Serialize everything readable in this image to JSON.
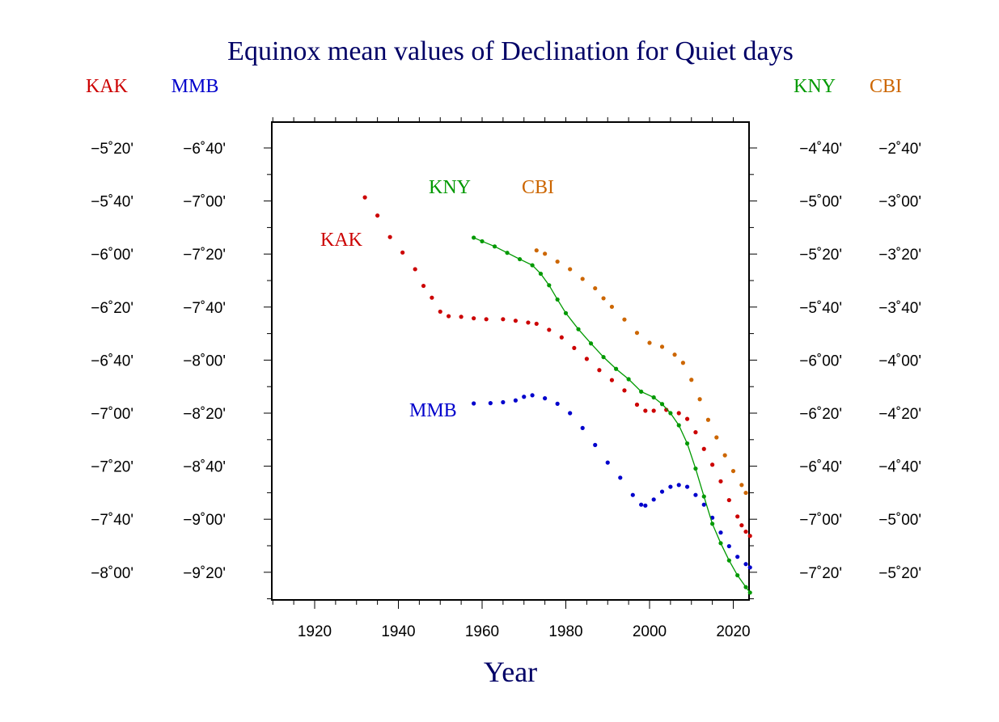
{
  "chart_data": {
    "type": "line",
    "title": "Equinox mean values of Declination for Quiet days",
    "xlabel": "Year",
    "xlim": [
      1910,
      2025
    ],
    "x_ticks": [
      1920,
      1940,
      1960,
      1980,
      2000,
      2020
    ],
    "grid": false,
    "axes": [
      {
        "name": "KAK",
        "side": "left",
        "color": "#cc0000",
        "tick_labels": [
          "−5˚20'",
          "−5˚40'",
          "−6˚00'",
          "−6˚20'",
          "−6˚40'",
          "−7˚00'",
          "−7˚20'",
          "−7˚40'",
          "−8˚00'"
        ]
      },
      {
        "name": "MMB",
        "side": "left",
        "color": "#0000cc",
        "tick_labels": [
          "−6˚40'",
          "−7˚00'",
          "−7˚20'",
          "−7˚40'",
          "−8˚00'",
          "−8˚20'",
          "−8˚40'",
          "−9˚00'",
          "−9˚20'"
        ]
      },
      {
        "name": "KNY",
        "side": "right",
        "color": "#009900",
        "tick_labels": [
          "−4˚40'",
          "−5˚00'",
          "−5˚20'",
          "−5˚40'",
          "−6˚00'",
          "−6˚20'",
          "−6˚40'",
          "−7˚00'",
          "−7˚20'"
        ]
      },
      {
        "name": "CBI",
        "side": "right",
        "color": "#cc6600",
        "tick_labels": [
          "−2˚40'",
          "−3˚00'",
          "−3˚20'",
          "−3˚40'",
          "−4˚00'",
          "−4˚20'",
          "−4˚40'",
          "−5˚00'",
          "−5˚20'"
        ]
      }
    ],
    "series": [
      {
        "name": "KAK",
        "color": "#cc0000",
        "ylim": [
          -330,
          -470
        ],
        "connected": false,
        "points": [
          [
            1932,
            -346.3
          ],
          [
            1935,
            -352.3
          ],
          [
            1938,
            -359.4
          ],
          [
            1941,
            -364.5
          ],
          [
            1944,
            -370
          ],
          [
            1946,
            -375.5
          ],
          [
            1948,
            -379.4
          ],
          [
            1950,
            -384
          ],
          [
            1952,
            -385.5
          ],
          [
            1955,
            -385.7
          ],
          [
            1958,
            -386.2
          ],
          [
            1961,
            -386.5
          ],
          [
            1965,
            -386.5
          ],
          [
            1968,
            -387
          ],
          [
            1971,
            -387.6
          ],
          [
            1973,
            -388
          ],
          [
            1976,
            -390
          ],
          [
            1979,
            -392.5
          ],
          [
            1982,
            -396
          ],
          [
            1985,
            -399.6
          ],
          [
            1988,
            -403.3
          ],
          [
            1991,
            -406.6
          ],
          [
            1994,
            -410
          ],
          [
            1997,
            -414.7
          ],
          [
            1999,
            -416.7
          ],
          [
            2001,
            -416.7
          ],
          [
            2004,
            -416.4
          ],
          [
            2007,
            -417.5
          ],
          [
            2009,
            -419.4
          ],
          [
            2011,
            -423.8
          ],
          [
            2013,
            -429.3
          ],
          [
            2015,
            -434.5
          ],
          [
            2017,
            -440
          ],
          [
            2019,
            -446.2
          ],
          [
            2021,
            -451.6
          ],
          [
            2022,
            -454.5
          ],
          [
            2023,
            -456.6
          ],
          [
            2024,
            -458
          ]
        ]
      },
      {
        "name": "MMB",
        "color": "#0000cc",
        "ylim": [
          -410,
          -550
        ],
        "connected": false,
        "points": [
          [
            1958,
            -494.3
          ],
          [
            1962,
            -494.2
          ],
          [
            1965,
            -493.9
          ],
          [
            1968,
            -493.3
          ],
          [
            1970,
            -492.1
          ],
          [
            1972,
            -491.6
          ],
          [
            1975,
            -492.6
          ],
          [
            1978,
            -494.4
          ],
          [
            1981,
            -497.5
          ],
          [
            1984,
            -502.4
          ],
          [
            1987,
            -508
          ],
          [
            1990,
            -513.8
          ],
          [
            1993,
            -518.8
          ],
          [
            1996,
            -524.5
          ],
          [
            1998,
            -527.7
          ],
          [
            1999,
            -528
          ],
          [
            2001,
            -526
          ],
          [
            2003,
            -523.4
          ],
          [
            2005,
            -521.8
          ],
          [
            2007,
            -521.2
          ],
          [
            2009,
            -521.8
          ],
          [
            2011,
            -524.5
          ],
          [
            2013,
            -527.7
          ],
          [
            2015,
            -532
          ],
          [
            2017,
            -536.9
          ],
          [
            2019,
            -541.4
          ],
          [
            2021,
            -544.9
          ],
          [
            2023,
            -547.3
          ],
          [
            2024,
            -548.4
          ]
        ]
      },
      {
        "name": "KNY",
        "color": "#009900",
        "ylim": [
          -270,
          -410
        ],
        "connected": true,
        "points": [
          [
            1958,
            -299.6
          ],
          [
            1960,
            -300.8
          ],
          [
            1963,
            -302.5
          ],
          [
            1966,
            -304.6
          ],
          [
            1969,
            -306.7
          ],
          [
            1972,
            -308.7
          ],
          [
            1974,
            -311.5
          ],
          [
            1976,
            -315.3
          ],
          [
            1978,
            -320
          ],
          [
            1980,
            -324.5
          ],
          [
            1983,
            -329.8
          ],
          [
            1986,
            -334.5
          ],
          [
            1989,
            -339
          ],
          [
            1992,
            -342.9
          ],
          [
            1995,
            -346.3
          ],
          [
            1998,
            -350.4
          ],
          [
            2001,
            -352.3
          ],
          [
            2003,
            -354.5
          ],
          [
            2005,
            -357.5
          ],
          [
            2007,
            -361.5
          ],
          [
            2009,
            -367.5
          ],
          [
            2011,
            -375.8
          ],
          [
            2013,
            -385
          ],
          [
            2015,
            -394
          ],
          [
            2017,
            -400.4
          ],
          [
            2019,
            -406.1
          ],
          [
            2021,
            -411
          ],
          [
            2023,
            -414.9
          ],
          [
            2024,
            -416.7
          ]
        ]
      },
      {
        "name": "CBI",
        "color": "#cc6600",
        "ylim": [
          -150,
          -290
        ],
        "connected": false,
        "points": [
          [
            1973,
            -183.8
          ],
          [
            1975,
            -184.9
          ],
          [
            1978,
            -187.5
          ],
          [
            1981,
            -190
          ],
          [
            1984,
            -193.2
          ],
          [
            1987,
            -196.3
          ],
          [
            1989,
            -199.6
          ],
          [
            1991,
            -202.4
          ],
          [
            1994,
            -206.6
          ],
          [
            1997,
            -211
          ],
          [
            2000,
            -214.3
          ],
          [
            2003,
            -215.6
          ],
          [
            2006,
            -218.2
          ],
          [
            2008,
            -220.9
          ],
          [
            2010,
            -226.5
          ],
          [
            2012,
            -232.9
          ],
          [
            2014,
            -239.7
          ],
          [
            2016,
            -245.5
          ],
          [
            2018,
            -251.4
          ],
          [
            2020,
            -256.6
          ],
          [
            2022,
            -261.2
          ],
          [
            2023,
            -263.8
          ]
        ]
      }
    ]
  }
}
